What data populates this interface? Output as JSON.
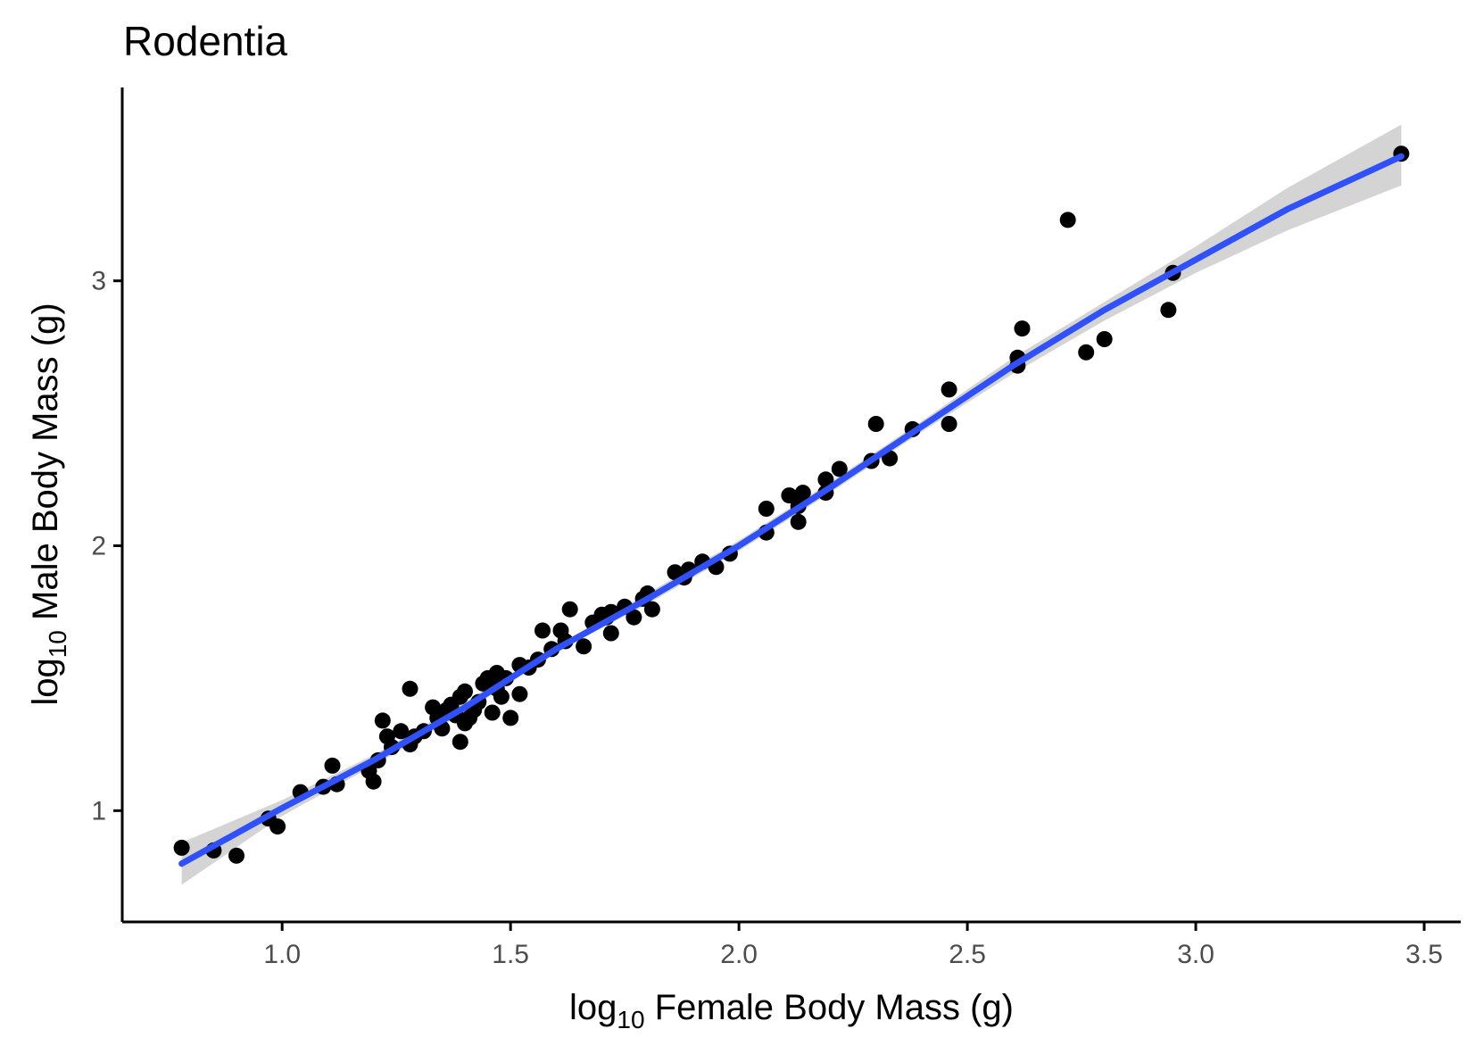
{
  "chart_data": {
    "type": "scatter",
    "title": "Rodentia",
    "xlabel": {
      "base": "log",
      "sub": "10",
      "rest": " Female Body Mass (g)"
    },
    "ylabel": {
      "base": "log",
      "sub": "10",
      "rest": " Male Body Mass (g)"
    },
    "xlim": [
      0.65,
      3.58
    ],
    "ylim": [
      0.58,
      3.73
    ],
    "x_ticks": [
      1.0,
      1.5,
      2.0,
      2.5,
      3.0,
      3.5
    ],
    "x_tick_labels": [
      "1.0",
      "1.5",
      "2.0",
      "2.5",
      "3.0",
      "3.5"
    ],
    "y_ticks": [
      1,
      2,
      3
    ],
    "y_tick_labels": [
      "1",
      "2",
      "3"
    ],
    "grid": false,
    "legend": "none",
    "colors": {
      "points": "#000000",
      "fit_line": "#3050f8",
      "ci_band": "#bdbdbd"
    },
    "points": [
      {
        "x": 0.78,
        "y": 0.86
      },
      {
        "x": 0.85,
        "y": 0.85
      },
      {
        "x": 0.9,
        "y": 0.83
      },
      {
        "x": 0.97,
        "y": 0.97
      },
      {
        "x": 0.99,
        "y": 0.94
      },
      {
        "x": 1.04,
        "y": 1.07
      },
      {
        "x": 1.09,
        "y": 1.09
      },
      {
        "x": 1.11,
        "y": 1.17
      },
      {
        "x": 1.12,
        "y": 1.1
      },
      {
        "x": 1.19,
        "y": 1.15
      },
      {
        "x": 1.2,
        "y": 1.11
      },
      {
        "x": 1.21,
        "y": 1.19
      },
      {
        "x": 1.22,
        "y": 1.34
      },
      {
        "x": 1.23,
        "y": 1.28
      },
      {
        "x": 1.24,
        "y": 1.24
      },
      {
        "x": 1.26,
        "y": 1.3
      },
      {
        "x": 1.28,
        "y": 1.46
      },
      {
        "x": 1.28,
        "y": 1.25
      },
      {
        "x": 1.29,
        "y": 1.28
      },
      {
        "x": 1.31,
        "y": 1.3
      },
      {
        "x": 1.33,
        "y": 1.39
      },
      {
        "x": 1.34,
        "y": 1.35
      },
      {
        "x": 1.35,
        "y": 1.31
      },
      {
        "x": 1.36,
        "y": 1.38
      },
      {
        "x": 1.37,
        "y": 1.4
      },
      {
        "x": 1.38,
        "y": 1.36
      },
      {
        "x": 1.39,
        "y": 1.43
      },
      {
        "x": 1.39,
        "y": 1.26
      },
      {
        "x": 1.4,
        "y": 1.33
      },
      {
        "x": 1.4,
        "y": 1.45
      },
      {
        "x": 1.41,
        "y": 1.35
      },
      {
        "x": 1.42,
        "y": 1.38
      },
      {
        "x": 1.43,
        "y": 1.41
      },
      {
        "x": 1.44,
        "y": 1.48
      },
      {
        "x": 1.45,
        "y": 1.5
      },
      {
        "x": 1.46,
        "y": 1.37
      },
      {
        "x": 1.47,
        "y": 1.52
      },
      {
        "x": 1.47,
        "y": 1.46
      },
      {
        "x": 1.48,
        "y": 1.43
      },
      {
        "x": 1.49,
        "y": 1.5
      },
      {
        "x": 1.5,
        "y": 1.35
      },
      {
        "x": 1.52,
        "y": 1.44
      },
      {
        "x": 1.52,
        "y": 1.55
      },
      {
        "x": 1.54,
        "y": 1.54
      },
      {
        "x": 1.56,
        "y": 1.57
      },
      {
        "x": 1.57,
        "y": 1.68
      },
      {
        "x": 1.59,
        "y": 1.61
      },
      {
        "x": 1.61,
        "y": 1.68
      },
      {
        "x": 1.62,
        "y": 1.64
      },
      {
        "x": 1.63,
        "y": 1.76
      },
      {
        "x": 1.66,
        "y": 1.62
      },
      {
        "x": 1.68,
        "y": 1.71
      },
      {
        "x": 1.7,
        "y": 1.74
      },
      {
        "x": 1.71,
        "y": 1.73
      },
      {
        "x": 1.72,
        "y": 1.75
      },
      {
        "x": 1.72,
        "y": 1.67
      },
      {
        "x": 1.75,
        "y": 1.77
      },
      {
        "x": 1.77,
        "y": 1.73
      },
      {
        "x": 1.79,
        "y": 1.8
      },
      {
        "x": 1.8,
        "y": 1.82
      },
      {
        "x": 1.81,
        "y": 1.76
      },
      {
        "x": 1.86,
        "y": 1.9
      },
      {
        "x": 1.88,
        "y": 1.88
      },
      {
        "x": 1.89,
        "y": 1.91
      },
      {
        "x": 1.92,
        "y": 1.94
      },
      {
        "x": 1.95,
        "y": 1.92
      },
      {
        "x": 1.98,
        "y": 1.97
      },
      {
        "x": 2.06,
        "y": 2.14
      },
      {
        "x": 2.06,
        "y": 2.05
      },
      {
        "x": 2.11,
        "y": 2.19
      },
      {
        "x": 2.13,
        "y": 2.15
      },
      {
        "x": 2.14,
        "y": 2.2
      },
      {
        "x": 2.13,
        "y": 2.09
      },
      {
        "x": 2.19,
        "y": 2.2
      },
      {
        "x": 2.19,
        "y": 2.25
      },
      {
        "x": 2.22,
        "y": 2.29
      },
      {
        "x": 2.29,
        "y": 2.32
      },
      {
        "x": 2.3,
        "y": 2.46
      },
      {
        "x": 2.33,
        "y": 2.33
      },
      {
        "x": 2.38,
        "y": 2.44
      },
      {
        "x": 2.46,
        "y": 2.59
      },
      {
        "x": 2.46,
        "y": 2.46
      },
      {
        "x": 2.61,
        "y": 2.68
      },
      {
        "x": 2.61,
        "y": 2.71
      },
      {
        "x": 2.62,
        "y": 2.82
      },
      {
        "x": 2.72,
        "y": 3.23
      },
      {
        "x": 2.76,
        "y": 2.73
      },
      {
        "x": 2.8,
        "y": 2.78
      },
      {
        "x": 2.94,
        "y": 2.89
      },
      {
        "x": 2.95,
        "y": 3.03
      },
      {
        "x": 3.45,
        "y": 3.48
      }
    ],
    "fit_line": [
      {
        "x": 0.78,
        "y": 0.8
      },
      {
        "x": 1.0,
        "y": 1.01
      },
      {
        "x": 1.2,
        "y": 1.19
      },
      {
        "x": 1.4,
        "y": 1.39
      },
      {
        "x": 1.6,
        "y": 1.61
      },
      {
        "x": 1.8,
        "y": 1.8
      },
      {
        "x": 2.0,
        "y": 2.0
      },
      {
        "x": 2.2,
        "y": 2.22
      },
      {
        "x": 2.4,
        "y": 2.45
      },
      {
        "x": 2.6,
        "y": 2.68
      },
      {
        "x": 2.8,
        "y": 2.89
      },
      {
        "x": 3.0,
        "y": 3.08
      },
      {
        "x": 3.2,
        "y": 3.27
      },
      {
        "x": 3.45,
        "y": 3.47
      }
    ],
    "ci_upper": [
      {
        "x": 0.78,
        "y": 0.88
      },
      {
        "x": 1.0,
        "y": 1.04
      },
      {
        "x": 1.2,
        "y": 1.21
      },
      {
        "x": 1.4,
        "y": 1.41
      },
      {
        "x": 1.6,
        "y": 1.62
      },
      {
        "x": 1.8,
        "y": 1.82
      },
      {
        "x": 2.0,
        "y": 2.02
      },
      {
        "x": 2.2,
        "y": 2.24
      },
      {
        "x": 2.4,
        "y": 2.47
      },
      {
        "x": 2.6,
        "y": 2.71
      },
      {
        "x": 2.8,
        "y": 2.92
      },
      {
        "x": 3.0,
        "y": 3.13
      },
      {
        "x": 3.2,
        "y": 3.35
      },
      {
        "x": 3.45,
        "y": 3.59
      }
    ],
    "ci_lower": [
      {
        "x": 0.78,
        "y": 0.72
      },
      {
        "x": 1.0,
        "y": 0.98
      },
      {
        "x": 1.2,
        "y": 1.17
      },
      {
        "x": 1.4,
        "y": 1.37
      },
      {
        "x": 1.6,
        "y": 1.6
      },
      {
        "x": 1.8,
        "y": 1.78
      },
      {
        "x": 2.0,
        "y": 1.98
      },
      {
        "x": 2.2,
        "y": 2.2
      },
      {
        "x": 2.4,
        "y": 2.43
      },
      {
        "x": 2.6,
        "y": 2.65
      },
      {
        "x": 2.8,
        "y": 2.85
      },
      {
        "x": 3.0,
        "y": 3.03
      },
      {
        "x": 3.2,
        "y": 3.19
      },
      {
        "x": 3.45,
        "y": 3.36
      }
    ]
  }
}
